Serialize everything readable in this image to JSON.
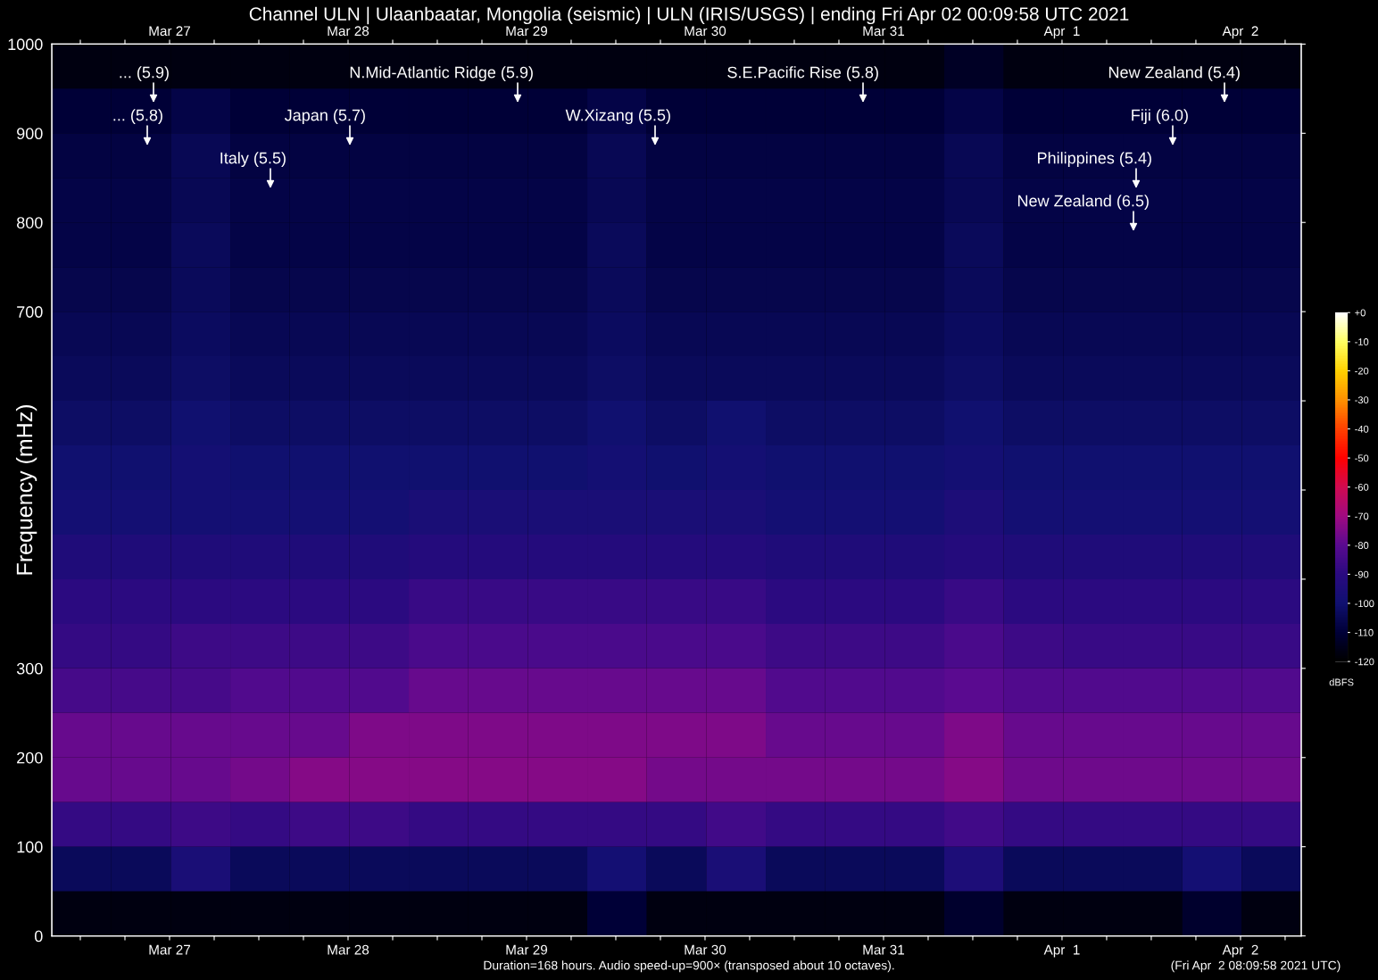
{
  "chart_data": {
    "type": "heatmap",
    "title": "Channel ULN | Ulaanbaatar, Mongolia (seismic) | ULN (IRIS/USGS) | ending Fri Apr 02 00:09:58 UTC 2021",
    "ylabel": "Frequency (mHz)",
    "clabel": "dBFS",
    "x": [
      "2021-03-26T12:10",
      "2021-03-26T20:10",
      "2021-03-27T04:10",
      "2021-03-27T12:10",
      "2021-03-27T20:10",
      "2021-03-28T04:10",
      "2021-03-28T12:10",
      "2021-03-28T20:10",
      "2021-03-29T04:10",
      "2021-03-29T12:10",
      "2021-03-29T20:10",
      "2021-03-30T04:10",
      "2021-03-30T12:10",
      "2021-03-30T20:10",
      "2021-03-31T04:10",
      "2021-03-31T12:10",
      "2021-03-31T20:10",
      "2021-04-01T04:10",
      "2021-04-01T12:10",
      "2021-04-01T20:10",
      "2021-04-02T04:10"
    ],
    "y": [
      975,
      925,
      875,
      825,
      775,
      725,
      675,
      625,
      575,
      525,
      475,
      425,
      375,
      325,
      275,
      225,
      175,
      125,
      75,
      25
    ],
    "cells": [
      [
        -117,
        -117,
        -117,
        -117,
        -117,
        -117,
        -117,
        -117,
        -117,
        -117,
        -117,
        -117,
        -117,
        -117,
        -117,
        -113,
        -117,
        -117,
        -117,
        -117,
        -117
      ],
      [
        -110,
        -110,
        -107,
        -110,
        -110,
        -110,
        -110,
        -110,
        -110,
        -107,
        -110,
        -110,
        -110,
        -110,
        -110,
        -107,
        -110,
        -110,
        -110,
        -110,
        -110
      ],
      [
        -108,
        -108,
        -105,
        -108,
        -108,
        -108,
        -108,
        -108,
        -108,
        -105,
        -108,
        -108,
        -108,
        -108,
        -108,
        -105,
        -108,
        -108,
        -108,
        -108,
        -108
      ],
      [
        -107,
        -107,
        -105,
        -107,
        -107,
        -107,
        -107,
        -107,
        -107,
        -105,
        -107,
        -107,
        -107,
        -107,
        -107,
        -105,
        -107,
        -107,
        -107,
        -107,
        -107
      ],
      [
        -107,
        -107,
        -104,
        -107,
        -107,
        -107,
        -107,
        -107,
        -107,
        -104,
        -107,
        -107,
        -107,
        -107,
        -107,
        -104,
        -107,
        -107,
        -107,
        -107,
        -107
      ],
      [
        -106,
        -106,
        -104,
        -106,
        -106,
        -106,
        -106,
        -106,
        -106,
        -104,
        -106,
        -106,
        -106,
        -106,
        -106,
        -104,
        -106,
        -106,
        -106,
        -106,
        -106
      ],
      [
        -105,
        -105,
        -103,
        -105,
        -105,
        -105,
        -105,
        -105,
        -105,
        -103,
        -105,
        -105,
        -105,
        -105,
        -105,
        -103,
        -105,
        -105,
        -105,
        -105,
        -105
      ],
      [
        -104,
        -104,
        -102,
        -104,
        -104,
        -104,
        -104,
        -104,
        -104,
        -102,
        -104,
        -104,
        -104,
        -104,
        -104,
        -102,
        -104,
        -104,
        -104,
        -104,
        -104
      ],
      [
        -102,
        -102,
        -100,
        -102,
        -102,
        -102,
        -102,
        -102,
        -102,
        -100,
        -102,
        -100,
        -102,
        -102,
        -102,
        -100,
        -102,
        -102,
        -102,
        -102,
        -102
      ],
      [
        -100,
        -100,
        -98,
        -100,
        -100,
        -100,
        -100,
        -100,
        -100,
        -98,
        -100,
        -98,
        -100,
        -100,
        -100,
        -98,
        -100,
        -100,
        -100,
        -100,
        -100
      ],
      [
        -98,
        -98,
        -98,
        -98,
        -98,
        -98,
        -96,
        -96,
        -96,
        -96,
        -96,
        -96,
        -98,
        -98,
        -98,
        -95,
        -98,
        -98,
        -98,
        -98,
        -98
      ],
      [
        -94,
        -94,
        -94,
        -94,
        -94,
        -94,
        -92,
        -92,
        -92,
        -92,
        -92,
        -92,
        -94,
        -94,
        -94,
        -92,
        -94,
        -94,
        -94,
        -94,
        -94
      ],
      [
        -90,
        -90,
        -90,
        -90,
        -90,
        -90,
        -87,
        -87,
        -87,
        -87,
        -87,
        -87,
        -90,
        -90,
        -90,
        -87,
        -90,
        -90,
        -90,
        -90,
        -90
      ],
      [
        -88,
        -88,
        -86,
        -86,
        -86,
        -86,
        -83,
        -83,
        -83,
        -83,
        -83,
        -83,
        -86,
        -86,
        -86,
        -83,
        -86,
        -87,
        -87,
        -87,
        -87
      ],
      [
        -84,
        -84,
        -84,
        -82,
        -82,
        -82,
        -78,
        -78,
        -78,
        -78,
        -78,
        -78,
        -82,
        -82,
        -82,
        -80,
        -82,
        -82,
        -82,
        -82,
        -82
      ],
      [
        -78,
        -78,
        -78,
        -78,
        -78,
        -75,
        -75,
        -75,
        -75,
        -75,
        -75,
        -75,
        -78,
        -78,
        -78,
        -75,
        -78,
        -78,
        -78,
        -78,
        -78
      ],
      [
        -78,
        -78,
        -78,
        -76,
        -74,
        -74,
        -74,
        -74,
        -74,
        -74,
        -76,
        -76,
        -76,
        -76,
        -76,
        -74,
        -77,
        -77,
        -77,
        -77,
        -77
      ],
      [
        -88,
        -88,
        -86,
        -88,
        -86,
        -86,
        -88,
        -88,
        -88,
        -88,
        -88,
        -85,
        -88,
        -88,
        -88,
        -85,
        -88,
        -88,
        -88,
        -88,
        -88
      ],
      [
        -104,
        -104,
        -96,
        -104,
        -104,
        -104,
        -104,
        -104,
        -104,
        -98,
        -104,
        -96,
        -104,
        -104,
        -104,
        -95,
        -104,
        -104,
        -104,
        -98,
        -104
      ],
      [
        -117,
        -117,
        -117,
        -117,
        -117,
        -117,
        -117,
        -117,
        -117,
        -110,
        -117,
        -117,
        -117,
        -117,
        -117,
        -112,
        -117,
        -117,
        -117,
        -112,
        -117
      ]
    ],
    "clim": [
      -120,
      0
    ],
    "cticks": [
      {
        "value": 0,
        "label": "+0"
      },
      -10,
      -20,
      -30,
      -40,
      -50,
      -60,
      -70,
      -80,
      -90,
      -100,
      -110,
      -120
    ],
    "xlim": [
      "2021-03-26T08:10",
      "2021-04-02T08:10"
    ],
    "xticks": [
      {
        "value": "2021-03-26T12:00",
        "label": null
      },
      {
        "value": "2021-03-26T18:00",
        "label": null
      },
      {
        "value": "2021-03-27",
        "label": "Mar 27"
      },
      {
        "value": "2021-03-27T06:00",
        "label": null
      },
      {
        "value": "2021-03-27T12:00",
        "label": null
      },
      {
        "value": "2021-03-27T18:00",
        "label": null
      },
      {
        "value": "2021-03-28",
        "label": "Mar 28"
      },
      {
        "value": "2021-03-28T06:00",
        "label": null
      },
      {
        "value": "2021-03-28T12:00",
        "label": null
      },
      {
        "value": "2021-03-28T18:00",
        "label": null
      },
      {
        "value": "2021-03-29",
        "label": "Mar 29"
      },
      {
        "value": "2021-03-29T06:00",
        "label": null
      },
      {
        "value": "2021-03-29T12:00",
        "label": null
      },
      {
        "value": "2021-03-29T18:00",
        "label": null
      },
      {
        "value": "2021-03-30",
        "label": "Mar 30"
      },
      {
        "value": "2021-03-30T06:00",
        "label": null
      },
      {
        "value": "2021-03-30T12:00",
        "label": null
      },
      {
        "value": "2021-03-30T18:00",
        "label": null
      },
      {
        "value": "2021-03-31",
        "label": "Mar 31"
      },
      {
        "value": "2021-03-31T06:00",
        "label": null
      },
      {
        "value": "2021-03-31T12:00",
        "label": null
      },
      {
        "value": "2021-03-31T18:00",
        "label": null
      },
      {
        "value": "2021-04-01",
        "label": "Apr  1"
      },
      {
        "value": "2021-04-01T06:00",
        "label": null
      },
      {
        "value": "2021-04-01T12:00",
        "label": null
      },
      {
        "value": "2021-04-01T18:00",
        "label": null
      },
      {
        "value": "2021-04-02",
        "label": "Apr  2"
      },
      {
        "value": "2021-04-02T06:00",
        "label": null
      }
    ],
    "x2lim": [
      "2021-03-26T08:10",
      "2021-04-02T08:10"
    ],
    "x2ticks": [
      {
        "value": "2021-03-26T12:00",
        "label": null
      },
      {
        "value": "2021-03-26T18:00",
        "label": null
      },
      {
        "value": "2021-03-27",
        "label": "Mar 27"
      },
      {
        "value": "2021-03-27T06:00",
        "label": null
      },
      {
        "value": "2021-03-27T12:00",
        "label": null
      },
      {
        "value": "2021-03-27T18:00",
        "label": null
      },
      {
        "value": "2021-03-28",
        "label": "Mar 28"
      },
      {
        "value": "2021-03-28T06:00",
        "label": null
      },
      {
        "value": "2021-03-28T12:00",
        "label": null
      },
      {
        "value": "2021-03-28T18:00",
        "label": null
      },
      {
        "value": "2021-03-29",
        "label": "Mar 29"
      },
      {
        "value": "2021-03-29T06:00",
        "label": null
      },
      {
        "value": "2021-03-29T12:00",
        "label": null
      },
      {
        "value": "2021-03-29T18:00",
        "label": null
      },
      {
        "value": "2021-03-30",
        "label": "Mar 30"
      },
      {
        "value": "2021-03-30T06:00",
        "label": null
      },
      {
        "value": "2021-03-30T12:00",
        "label": null
      },
      {
        "value": "2021-03-30T18:00",
        "label": null
      },
      {
        "value": "2021-03-31",
        "label": "Mar 31"
      },
      {
        "value": "2021-03-31T06:00",
        "label": null
      },
      {
        "value": "2021-03-31T12:00",
        "label": null
      },
      {
        "value": "2021-03-31T18:00",
        "label": null
      },
      {
        "value": "2021-04-01",
        "label": "Apr  1"
      },
      {
        "value": "2021-04-01T06:00",
        "label": null
      },
      {
        "value": "2021-04-01T12:00",
        "label": null
      },
      {
        "value": "2021-04-01T18:00",
        "label": null
      },
      {
        "value": "2021-04-02",
        "label": "Apr  2"
      },
      {
        "value": "2021-04-02T06:00",
        "label": null
      }
    ],
    "ylim": [
      0,
      1000
    ],
    "yticks": [
      0,
      100,
      200,
      300,
      {
        "value": 400,
        "label": null
      },
      {
        "value": 500,
        "label": null
      },
      {
        "value": 600,
        "label": null
      },
      700,
      800,
      900,
      1000
    ],
    "annotations": [
      "... (5.9)",
      "... (5.8)",
      "Italy (5.5)",
      "Japan (5.7)",
      "N.Mid-Atlantic Ridge (5.9)",
      "W.Xizang (5.5)",
      "S.E.Pacific Rise (5.8)",
      "New Zealand (5.4)",
      "Fiji (6.0)",
      "Philippines (5.4)",
      "New Zealand (6.5)",
      "Duration=168 hours. Audio speed-up=900× (transposed about 10 octaves).",
      "(Fri Apr  2 08:09:58 2021 UTC)"
    ]
  }
}
